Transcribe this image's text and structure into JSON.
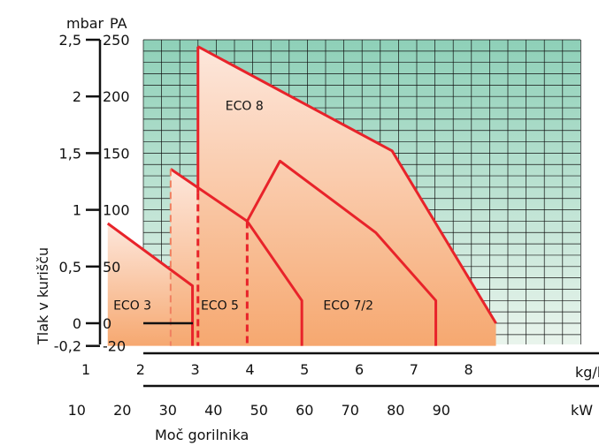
{
  "chart_data": {
    "type": "area",
    "y_units": {
      "left": "mbar",
      "right": "PA"
    },
    "ylabel": "Tlak v kurišču",
    "xlabel": "Moč gorilnika",
    "x_units": {
      "top": "kg/h",
      "bottom": "kW"
    },
    "yticks_mbar": [
      "2,5",
      "2",
      "1,5",
      "1",
      "0,5",
      "0",
      "-0,2"
    ],
    "yticks_pa": [
      "250",
      "200",
      "150",
      "100",
      "50",
      "0",
      "-20"
    ],
    "xticks_kg": [
      "1",
      "2",
      "3",
      "4",
      "5",
      "6",
      "7",
      "8"
    ],
    "xticks_kw": [
      "10",
      "20",
      "30",
      "40",
      "50",
      "60",
      "70",
      "80",
      "90"
    ],
    "ylim_pa": [
      -20,
      250
    ],
    "xlim_kg": [
      0,
      8.5
    ],
    "grid": true,
    "colors": {
      "grid_top": "#8ed0b8",
      "grid_bottom": "#e9f4ec",
      "area_top": "#fde7dc",
      "area_bottom": "#f6a870",
      "line": "#e8232a"
    },
    "series": [
      {
        "name": "ECO 3",
        "points": [
          [
            1.4,
            88
          ],
          [
            2.95,
            33
          ],
          [
            2.95,
            -20
          ]
        ]
      },
      {
        "name": "ECO 5",
        "points": [
          [
            2.55,
            136
          ],
          [
            3.95,
            90
          ],
          [
            4.95,
            20
          ],
          [
            4.95,
            -20
          ]
        ]
      },
      {
        "name": "ECO 7/2",
        "points": [
          [
            3.95,
            90
          ],
          [
            4.55,
            143
          ],
          [
            6.3,
            80
          ],
          [
            7.4,
            20
          ],
          [
            7.4,
            -20
          ]
        ]
      },
      {
        "name": "ECO 8",
        "points": [
          [
            3.05,
            244
          ],
          [
            6.6,
            152
          ],
          [
            8.5,
            0
          ]
        ]
      }
    ],
    "dashed_markers_kg": [
      2.55,
      3.05,
      3.95
    ]
  }
}
